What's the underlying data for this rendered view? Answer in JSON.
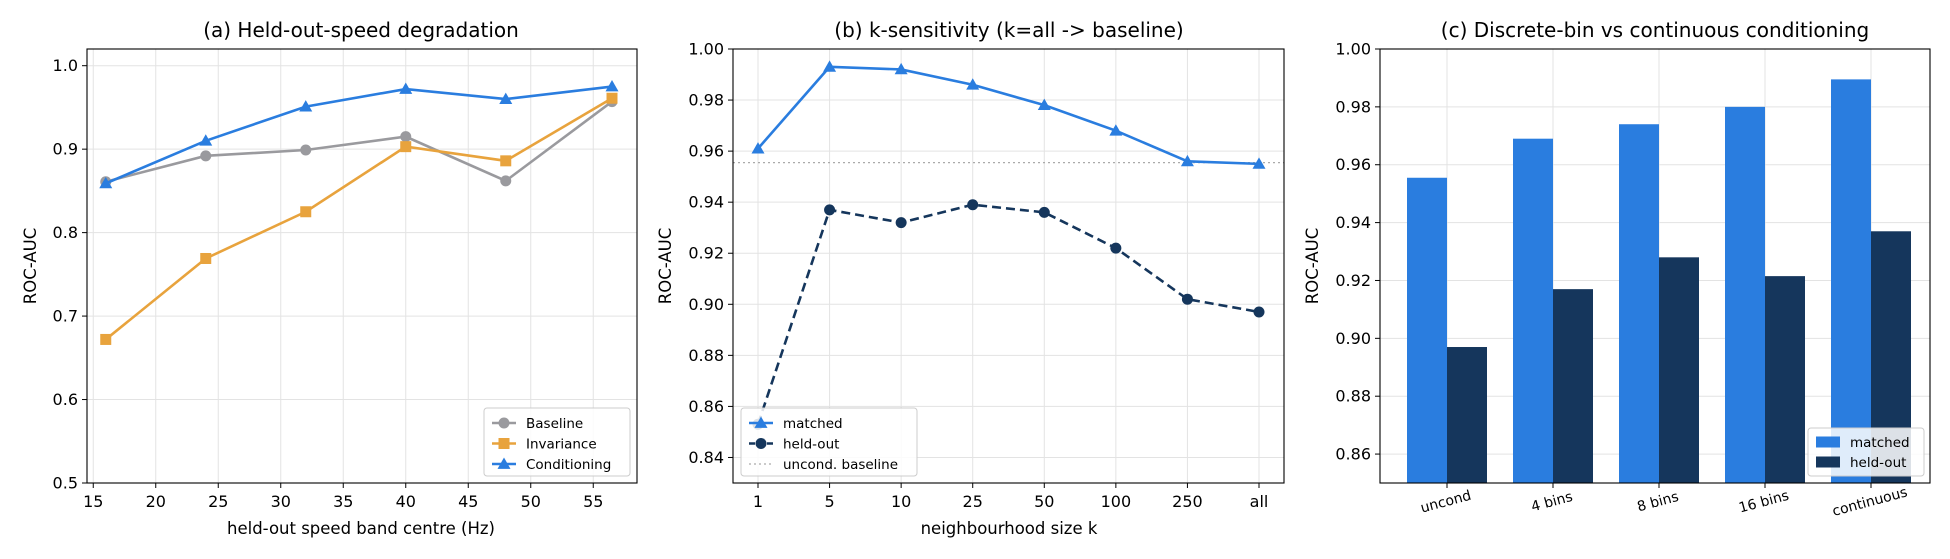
{
  "colors": {
    "baseline": "#9a9a9e",
    "invariance": "#e8a33d",
    "conditioning": "#2a7ddf",
    "matched": "#2a7ddf",
    "held_out": "#15365c",
    "uncond_baseline_line": "#aaaaaa"
  },
  "chart_data": [
    {
      "type": "line",
      "title": "(a) Held-out-speed degradation",
      "xlabel": "held-out speed band centre (Hz)",
      "ylabel": "ROC-AUC",
      "xlim": [
        14.5,
        58.5
      ],
      "ylim": [
        0.5,
        1.02
      ],
      "xticks": [
        "15",
        "20",
        "25",
        "30",
        "35",
        "40",
        "45",
        "50",
        "55"
      ],
      "yticks": [
        "0.5",
        "0.6",
        "0.7",
        "0.8",
        "0.9",
        "1.0"
      ],
      "x": [
        16,
        24,
        32,
        40,
        48,
        56.5
      ],
      "series": [
        {
          "name": "Baseline",
          "marker": "circle",
          "color": "baseline",
          "values": [
            0.861,
            0.892,
            0.899,
            0.915,
            0.862,
            0.957
          ]
        },
        {
          "name": "Invariance",
          "marker": "square",
          "color": "invariance",
          "values": [
            0.672,
            0.769,
            0.825,
            0.903,
            0.886,
            0.961
          ]
        },
        {
          "name": "Conditioning",
          "marker": "triangle",
          "color": "conditioning",
          "values": [
            0.859,
            0.91,
            0.951,
            0.972,
            0.96,
            0.975
          ]
        }
      ],
      "legend_position": "lower-right",
      "grid": true
    },
    {
      "type": "line",
      "title": "(b) k-sensitivity (k=all -> baseline)",
      "xlabel": "neighbourhood size k",
      "ylabel": "ROC-AUC",
      "ylim": [
        0.83,
        1.0
      ],
      "categories": [
        "1",
        "5",
        "10",
        "25",
        "50",
        "100",
        "250",
        "all"
      ],
      "yticks": [
        "0.84",
        "0.86",
        "0.88",
        "0.90",
        "0.92",
        "0.94",
        "0.96",
        "0.98",
        "1.00"
      ],
      "series": [
        {
          "name": "matched",
          "marker": "triangle",
          "color": "matched",
          "dashed": false,
          "values": [
            0.961,
            0.993,
            0.992,
            0.986,
            0.978,
            0.968,
            0.956,
            0.955
          ]
        },
        {
          "name": "held-out",
          "marker": "circle",
          "color": "held_out",
          "dashed": true,
          "values": [
            0.853,
            0.937,
            0.932,
            0.939,
            0.936,
            0.922,
            0.902,
            0.897
          ]
        }
      ],
      "reference_line": {
        "name": "uncond. baseline",
        "y": 0.9555
      },
      "legend_position": "lower-left",
      "grid": true
    },
    {
      "type": "bar",
      "title": "(c) Discrete-bin vs continuous conditioning",
      "ylabel": "ROC-AUC",
      "ylim": [
        0.85,
        1.0
      ],
      "categories": [
        "uncond",
        "4 bins",
        "8 bins",
        "16 bins",
        "continuous"
      ],
      "yticks": [
        "0.86",
        "0.88",
        "0.90",
        "0.92",
        "0.94",
        "0.96",
        "0.98",
        "1.00"
      ],
      "series": [
        {
          "name": "matched",
          "color": "matched",
          "values": [
            0.9555,
            0.969,
            0.974,
            0.98,
            0.9895
          ]
        },
        {
          "name": "held-out",
          "color": "held_out",
          "values": [
            0.897,
            0.917,
            0.928,
            0.9215,
            0.937
          ]
        }
      ],
      "legend_position": "lower-right",
      "grid": true
    }
  ]
}
